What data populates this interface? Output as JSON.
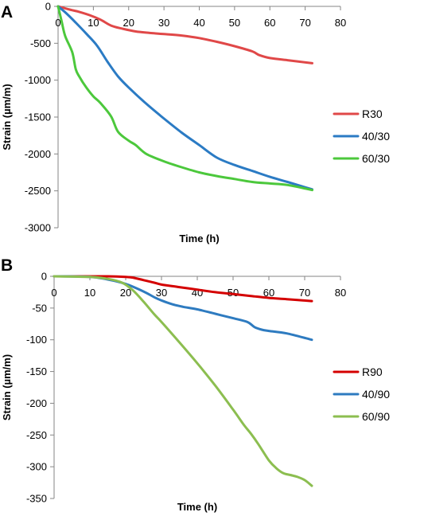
{
  "chart_data": [
    {
      "panel_label": "A",
      "type": "line",
      "xlabel": "Time (h)",
      "ylabel": "Strain (µm/m)",
      "xlim": [
        0,
        80
      ],
      "ylim": [
        -3000,
        0
      ],
      "x_ticks": [
        0,
        10,
        20,
        30,
        40,
        50,
        60,
        70,
        80
      ],
      "y_ticks": [
        0,
        -500,
        -1000,
        -1500,
        -2000,
        -2500,
        -3000
      ],
      "grid": false,
      "legend_position": "right",
      "series": [
        {
          "name": "R30",
          "color": "#e04848",
          "x": [
            0,
            3,
            6,
            9,
            12,
            15,
            18,
            22,
            26,
            30,
            35,
            40,
            45,
            50,
            55,
            57,
            60,
            65,
            72
          ],
          "y": [
            0,
            -40,
            -75,
            -120,
            -180,
            -260,
            -300,
            -340,
            -360,
            -375,
            -395,
            -430,
            -480,
            -540,
            -610,
            -660,
            -700,
            -730,
            -770
          ]
        },
        {
          "name": "40/30",
          "color": "#2b7bc4",
          "x": [
            0,
            2,
            5,
            8,
            11,
            14,
            17,
            20,
            25,
            30,
            35,
            40,
            45,
            50,
            55,
            60,
            65,
            72
          ],
          "y": [
            0,
            -80,
            -220,
            -370,
            -530,
            -750,
            -950,
            -1100,
            -1320,
            -1520,
            -1710,
            -1880,
            -2050,
            -2150,
            -2230,
            -2310,
            -2380,
            -2480
          ]
        },
        {
          "name": "60/30",
          "color": "#4cc83c",
          "x": [
            0,
            1,
            2,
            4,
            5,
            6,
            8,
            10,
            12,
            15,
            17,
            20,
            22,
            25,
            30,
            35,
            40,
            45,
            50,
            55,
            60,
            65,
            72
          ],
          "y": [
            0,
            -200,
            -400,
            -620,
            -850,
            -950,
            -1100,
            -1220,
            -1310,
            -1490,
            -1700,
            -1820,
            -1880,
            -2000,
            -2100,
            -2180,
            -2250,
            -2300,
            -2340,
            -2380,
            -2400,
            -2420,
            -2490
          ]
        }
      ]
    },
    {
      "panel_label": "B",
      "type": "line",
      "xlabel": "Time (h)",
      "ylabel": "Strain (µm/m)",
      "xlim": [
        0,
        80
      ],
      "ylim": [
        -350,
        0
      ],
      "x_ticks": [
        0,
        10,
        20,
        30,
        40,
        50,
        60,
        70,
        80
      ],
      "y_ticks": [
        0,
        -50,
        -100,
        -150,
        -200,
        -250,
        -300,
        -350
      ],
      "grid": false,
      "legend_position": "right",
      "series": [
        {
          "name": "R90",
          "color": "#d40000",
          "x": [
            0,
            10,
            15,
            20,
            22,
            25,
            28,
            30,
            35,
            40,
            45,
            50,
            55,
            60,
            65,
            72
          ],
          "y": [
            0,
            0,
            0,
            -1,
            -2,
            -6,
            -10,
            -13,
            -17,
            -21,
            -25,
            -28,
            -31,
            -34,
            -36,
            -39
          ]
        },
        {
          "name": "40/90",
          "color": "#2e7bc0",
          "x": [
            0,
            10,
            15,
            20,
            25,
            28,
            30,
            33,
            36,
            40,
            45,
            50,
            54,
            56,
            58,
            60,
            65,
            72
          ],
          "y": [
            0,
            -1,
            -5,
            -12,
            -24,
            -33,
            -38,
            -44,
            -48,
            -52,
            -59,
            -66,
            -72,
            -80,
            -84,
            -86,
            -90,
            -100
          ]
        },
        {
          "name": "60/90",
          "color": "#8cbe50",
          "x": [
            0,
            10,
            15,
            19,
            22,
            25,
            28,
            30,
            35,
            40,
            45,
            50,
            53,
            55,
            57,
            60,
            62,
            64,
            66,
            68,
            70,
            72
          ],
          "y": [
            0,
            -1,
            -4,
            -10,
            -22,
            -40,
            -60,
            -72,
            -104,
            -137,
            -172,
            -210,
            -234,
            -248,
            -264,
            -290,
            -302,
            -310,
            -313,
            -316,
            -321,
            -330
          ]
        }
      ]
    }
  ]
}
